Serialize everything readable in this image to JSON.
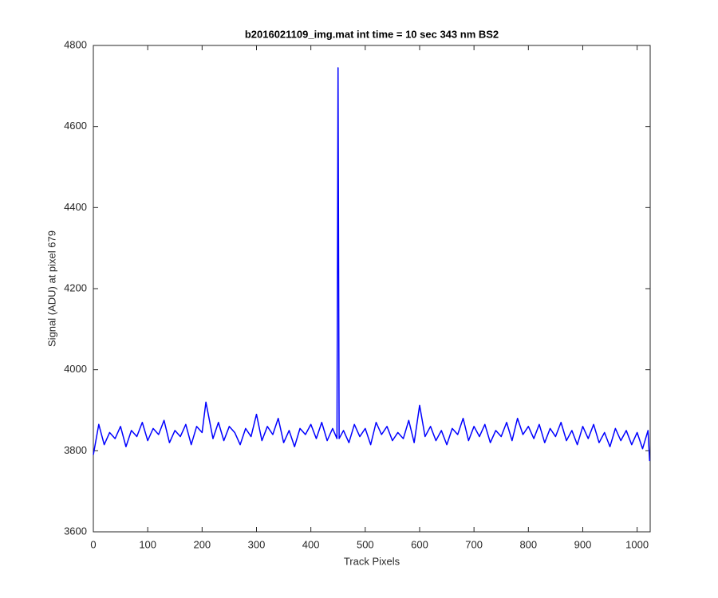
{
  "chart_data": {
    "type": "line",
    "title": "b2016021109_img.mat int time = 10 sec  343 nm BS2",
    "xlabel": "Track Pixels",
    "ylabel": "Signal (ADU) at pixel 679",
    "xlim": [
      0,
      1024
    ],
    "ylim": [
      3600,
      4800
    ],
    "xticks": [
      0,
      100,
      200,
      300,
      400,
      500,
      600,
      700,
      800,
      900,
      1000
    ],
    "yticks": [
      3600,
      3800,
      4000,
      4200,
      4400,
      4600,
      4800
    ],
    "grid": false,
    "series": [
      {
        "name": "signal",
        "color": "#0000ff",
        "x": [
          0,
          10,
          20,
          30,
          40,
          50,
          60,
          70,
          80,
          90,
          100,
          110,
          120,
          130,
          140,
          150,
          160,
          170,
          180,
          190,
          200,
          207,
          220,
          230,
          240,
          250,
          260,
          270,
          280,
          290,
          300,
          310,
          320,
          330,
          340,
          350,
          360,
          370,
          380,
          390,
          400,
          410,
          420,
          430,
          440,
          448,
          450,
          452,
          460,
          470,
          480,
          490,
          500,
          510,
          520,
          530,
          540,
          550,
          560,
          570,
          580,
          590,
          600,
          610,
          620,
          630,
          640,
          650,
          660,
          670,
          680,
          690,
          700,
          710,
          720,
          730,
          740,
          750,
          760,
          770,
          780,
          790,
          800,
          810,
          820,
          830,
          840,
          850,
          860,
          870,
          880,
          890,
          900,
          910,
          920,
          930,
          940,
          950,
          960,
          970,
          980,
          990,
          1000,
          1010,
          1020,
          1023
        ],
        "values": [
          3790,
          3865,
          3815,
          3845,
          3830,
          3860,
          3810,
          3850,
          3835,
          3870,
          3825,
          3855,
          3840,
          3875,
          3820,
          3850,
          3835,
          3865,
          3815,
          3860,
          3845,
          3920,
          3830,
          3870,
          3825,
          3860,
          3845,
          3815,
          3855,
          3835,
          3890,
          3825,
          3860,
          3840,
          3880,
          3820,
          3850,
          3810,
          3855,
          3840,
          3865,
          3830,
          3870,
          3825,
          3855,
          3830,
          4745,
          3830,
          3850,
          3820,
          3865,
          3835,
          3855,
          3815,
          3870,
          3840,
          3860,
          3825,
          3845,
          3830,
          3875,
          3820,
          3912,
          3835,
          3860,
          3825,
          3850,
          3815,
          3855,
          3840,
          3880,
          3825,
          3860,
          3835,
          3865,
          3820,
          3850,
          3835,
          3870,
          3825,
          3880,
          3840,
          3860,
          3830,
          3865,
          3820,
          3855,
          3835,
          3870,
          3825,
          3850,
          3815,
          3860,
          3830,
          3865,
          3820,
          3845,
          3810,
          3855,
          3825,
          3850,
          3815,
          3845,
          3805,
          3850,
          3775
        ]
      }
    ]
  }
}
